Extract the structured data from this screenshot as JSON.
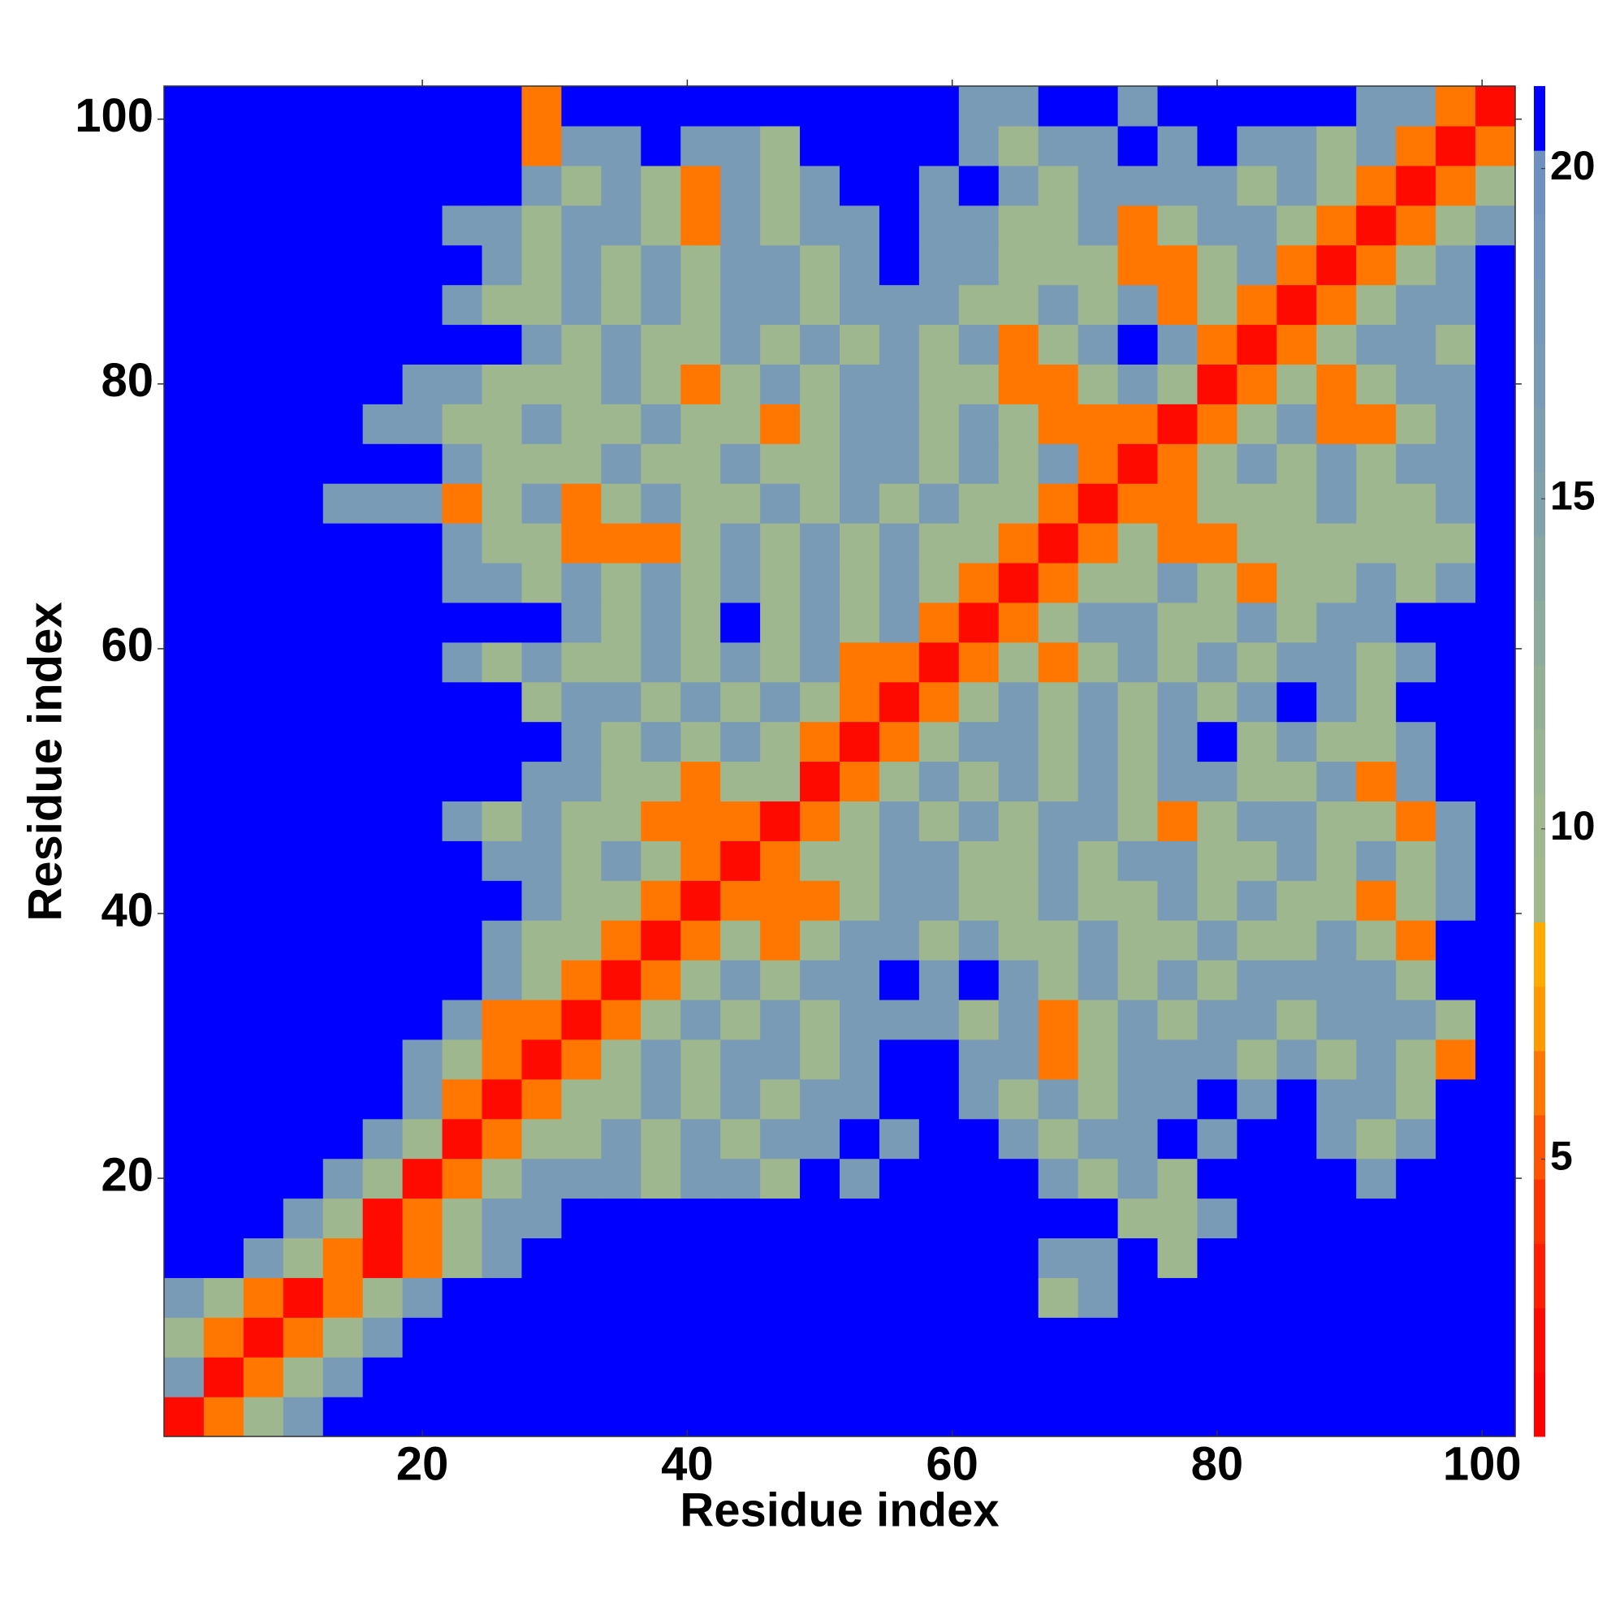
{
  "chart_data": {
    "type": "heatmap",
    "xlabel": "Residue index",
    "ylabel": "Residue index",
    "x": [
      2,
      5,
      8,
      11,
      14,
      17,
      20,
      23,
      26,
      29,
      32,
      35,
      38,
      41,
      44,
      47,
      50,
      53,
      56,
      59,
      62,
      65,
      68,
      71,
      74,
      77,
      80,
      83,
      86,
      89,
      92,
      95,
      98,
      101
    ],
    "y": [
      2,
      5,
      8,
      11,
      14,
      17,
      20,
      23,
      26,
      29,
      32,
      35,
      38,
      41,
      44,
      47,
      50,
      53,
      56,
      59,
      62,
      65,
      68,
      71,
      74,
      77,
      80,
      83,
      86,
      89,
      92,
      95,
      98,
      101
    ],
    "z": [
      [
        2,
        6,
        10,
        17,
        21,
        21,
        21,
        21,
        21,
        21,
        21,
        21,
        21,
        21,
        21,
        21,
        21,
        21,
        21,
        21,
        21,
        21,
        21,
        21,
        21,
        21,
        21,
        21,
        21,
        21,
        21,
        21,
        21,
        21
      ],
      [
        17,
        2,
        6,
        10,
        17,
        21,
        21,
        21,
        21,
        21,
        21,
        21,
        21,
        21,
        21,
        21,
        21,
        21,
        21,
        21,
        21,
        21,
        21,
        21,
        21,
        21,
        21,
        21,
        21,
        21,
        21,
        21,
        21,
        21
      ],
      [
        10,
        6,
        2,
        6,
        10,
        17,
        21,
        21,
        21,
        21,
        21,
        21,
        21,
        21,
        21,
        21,
        21,
        21,
        21,
        21,
        21,
        21,
        21,
        21,
        21,
        21,
        21,
        21,
        21,
        21,
        21,
        21,
        21,
        21
      ],
      [
        17,
        10,
        6,
        2,
        6,
        10,
        17,
        21,
        21,
        21,
        21,
        21,
        21,
        21,
        21,
        21,
        21,
        21,
        21,
        21,
        21,
        21,
        10,
        17,
        21,
        21,
        21,
        21,
        21,
        21,
        21,
        21,
        21,
        21
      ],
      [
        21,
        21,
        17,
        10,
        6,
        2,
        6,
        10,
        17,
        21,
        21,
        21,
        21,
        21,
        21,
        21,
        21,
        21,
        21,
        21,
        21,
        21,
        17,
        17,
        21,
        10,
        21,
        21,
        21,
        21,
        21,
        21,
        21,
        21
      ],
      [
        21,
        21,
        21,
        17,
        10,
        2,
        6,
        10,
        17,
        17,
        21,
        21,
        21,
        21,
        21,
        21,
        21,
        21,
        21,
        21,
        21,
        21,
        21,
        21,
        10,
        10,
        17,
        21,
        21,
        21,
        21,
        21,
        21,
        21
      ],
      [
        21,
        21,
        21,
        21,
        17,
        10,
        2,
        6,
        10,
        17,
        17,
        17,
        10,
        17,
        17,
        10,
        21,
        17,
        21,
        21,
        21,
        21,
        17,
        10,
        17,
        10,
        21,
        21,
        21,
        21,
        17,
        21,
        21,
        21
      ],
      [
        21,
        21,
        21,
        21,
        21,
        17,
        10,
        2,
        6,
        10,
        10,
        17,
        10,
        17,
        10,
        17,
        17,
        21,
        17,
        21,
        21,
        17,
        10,
        17,
        17,
        21,
        17,
        21,
        21,
        17,
        10,
        17,
        21,
        21
      ],
      [
        21,
        21,
        21,
        21,
        21,
        21,
        17,
        6,
        2,
        6,
        10,
        10,
        17,
        10,
        17,
        10,
        17,
        17,
        21,
        21,
        17,
        10,
        17,
        10,
        17,
        17,
        21,
        17,
        21,
        17,
        17,
        10,
        21,
        21
      ],
      [
        21,
        21,
        21,
        21,
        21,
        21,
        17,
        10,
        6,
        2,
        6,
        10,
        17,
        10,
        17,
        17,
        10,
        17,
        21,
        21,
        17,
        17,
        6,
        10,
        17,
        17,
        17,
        10,
        17,
        10,
        17,
        10,
        6,
        21
      ],
      [
        21,
        21,
        21,
        21,
        21,
        21,
        21,
        17,
        6,
        6,
        2,
        6,
        10,
        17,
        10,
        17,
        10,
        17,
        17,
        17,
        10,
        17,
        6,
        10,
        17,
        10,
        17,
        17,
        10,
        17,
        17,
        17,
        10,
        21
      ],
      [
        21,
        21,
        21,
        21,
        21,
        21,
        21,
        21,
        17,
        10,
        6,
        2,
        6,
        10,
        17,
        10,
        17,
        17,
        21,
        17,
        21,
        17,
        10,
        17,
        10,
        17,
        10,
        17,
        17,
        17,
        17,
        10,
        21,
        21
      ],
      [
        21,
        21,
        21,
        21,
        21,
        21,
        21,
        21,
        17,
        10,
        10,
        6,
        2,
        6,
        10,
        6,
        10,
        17,
        17,
        10,
        17,
        10,
        10,
        17,
        10,
        10,
        17,
        10,
        10,
        17,
        10,
        6,
        21,
        21
      ],
      [
        21,
        21,
        21,
        21,
        21,
        21,
        21,
        21,
        21,
        17,
        10,
        10,
        6,
        2,
        6,
        6,
        6,
        10,
        17,
        17,
        10,
        10,
        17,
        10,
        10,
        17,
        10,
        17,
        10,
        10,
        6,
        10,
        17,
        21
      ],
      [
        21,
        21,
        21,
        21,
        21,
        21,
        21,
        21,
        17,
        17,
        10,
        17,
        10,
        6,
        2,
        6,
        10,
        10,
        17,
        17,
        10,
        10,
        17,
        10,
        17,
        17,
        10,
        10,
        17,
        10,
        17,
        10,
        17,
        21
      ],
      [
        21,
        21,
        21,
        21,
        21,
        21,
        21,
        17,
        10,
        17,
        10,
        10,
        6,
        6,
        6,
        2,
        6,
        10,
        17,
        10,
        17,
        10,
        17,
        17,
        10,
        6,
        10,
        17,
        17,
        10,
        10,
        6,
        17,
        21
      ],
      [
        21,
        21,
        21,
        21,
        21,
        21,
        21,
        21,
        21,
        17,
        17,
        10,
        10,
        6,
        10,
        10,
        2,
        6,
        10,
        17,
        10,
        17,
        10,
        17,
        10,
        17,
        17,
        10,
        10,
        17,
        6,
        17,
        21,
        21
      ],
      [
        21,
        21,
        21,
        21,
        21,
        21,
        21,
        21,
        21,
        21,
        17,
        10,
        17,
        10,
        17,
        10,
        6,
        2,
        6,
        10,
        17,
        17,
        10,
        17,
        10,
        17,
        21,
        10,
        17,
        10,
        10,
        17,
        21,
        21
      ],
      [
        21,
        21,
        21,
        21,
        21,
        21,
        21,
        21,
        21,
        10,
        17,
        17,
        10,
        17,
        10,
        17,
        10,
        6,
        2,
        6,
        10,
        17,
        10,
        17,
        10,
        17,
        10,
        17,
        21,
        17,
        10,
        21,
        21,
        21
      ],
      [
        21,
        21,
        21,
        21,
        21,
        21,
        21,
        17,
        10,
        17,
        10,
        10,
        17,
        10,
        17,
        10,
        17,
        6,
        6,
        2,
        6,
        10,
        6,
        10,
        17,
        10,
        17,
        10,
        17,
        17,
        10,
        17,
        21,
        21
      ],
      [
        21,
        21,
        21,
        21,
        21,
        21,
        21,
        21,
        21,
        21,
        17,
        10,
        17,
        10,
        21,
        10,
        17,
        10,
        17,
        6,
        2,
        6,
        10,
        17,
        17,
        10,
        10,
        17,
        10,
        17,
        17,
        21,
        21,
        21
      ],
      [
        21,
        21,
        21,
        21,
        21,
        21,
        21,
        17,
        17,
        10,
        17,
        10,
        17,
        10,
        17,
        10,
        17,
        10,
        17,
        10,
        6,
        2,
        6,
        10,
        10,
        17,
        10,
        6,
        10,
        10,
        17,
        10,
        17,
        21
      ],
      [
        21,
        21,
        21,
        21,
        21,
        21,
        21,
        17,
        10,
        10,
        6,
        6,
        6,
        10,
        17,
        10,
        17,
        10,
        17,
        10,
        10,
        6,
        2,
        6,
        10,
        6,
        6,
        10,
        10,
        10,
        10,
        10,
        10,
        21
      ],
      [
        21,
        21,
        21,
        21,
        17,
        17,
        17,
        6,
        10,
        17,
        6,
        10,
        17,
        10,
        10,
        17,
        10,
        17,
        10,
        17,
        10,
        10,
        6,
        2,
        6,
        6,
        10,
        10,
        10,
        17,
        10,
        10,
        17,
        21
      ],
      [
        21,
        21,
        21,
        21,
        21,
        21,
        21,
        17,
        10,
        10,
        10,
        17,
        10,
        10,
        17,
        10,
        10,
        17,
        17,
        10,
        17,
        10,
        17,
        6,
        2,
        6,
        10,
        17,
        10,
        17,
        10,
        17,
        17,
        21
      ],
      [
        21,
        21,
        21,
        21,
        21,
        17,
        17,
        10,
        10,
        17,
        10,
        10,
        17,
        10,
        10,
        6,
        10,
        17,
        17,
        10,
        17,
        10,
        6,
        6,
        6,
        2,
        6,
        10,
        17,
        6,
        6,
        10,
        17,
        21
      ],
      [
        21,
        21,
        21,
        21,
        21,
        21,
        17,
        17,
        10,
        10,
        10,
        17,
        10,
        6,
        10,
        17,
        10,
        17,
        17,
        10,
        10,
        6,
        6,
        10,
        17,
        10,
        2,
        6,
        10,
        6,
        10,
        17,
        17,
        21
      ],
      [
        21,
        21,
        21,
        21,
        21,
        21,
        21,
        21,
        21,
        17,
        10,
        17,
        10,
        10,
        17,
        10,
        17,
        10,
        17,
        10,
        17,
        6,
        10,
        17,
        21,
        17,
        6,
        2,
        6,
        10,
        17,
        17,
        10,
        21
      ],
      [
        21,
        21,
        21,
        21,
        21,
        21,
        21,
        17,
        10,
        10,
        17,
        10,
        17,
        10,
        17,
        17,
        10,
        17,
        17,
        17,
        10,
        10,
        17,
        10,
        17,
        6,
        10,
        6,
        2,
        6,
        10,
        17,
        17,
        21
      ],
      [
        21,
        21,
        21,
        21,
        21,
        21,
        21,
        21,
        17,
        10,
        17,
        10,
        17,
        10,
        17,
        17,
        10,
        17,
        21,
        17,
        17,
        10,
        10,
        10,
        6,
        6,
        10,
        17,
        6,
        2,
        6,
        10,
        17,
        21
      ],
      [
        21,
        21,
        21,
        21,
        21,
        21,
        21,
        17,
        17,
        10,
        17,
        17,
        10,
        6,
        17,
        10,
        17,
        17,
        21,
        17,
        17,
        10,
        10,
        17,
        6,
        10,
        17,
        17,
        10,
        6,
        2,
        6,
        10,
        17
      ],
      [
        21,
        21,
        21,
        21,
        21,
        21,
        21,
        21,
        21,
        17,
        10,
        17,
        10,
        6,
        17,
        10,
        17,
        21,
        21,
        17,
        21,
        17,
        10,
        17,
        17,
        17,
        17,
        10,
        17,
        10,
        6,
        2,
        6,
        10
      ],
      [
        21,
        21,
        21,
        21,
        21,
        21,
        21,
        21,
        21,
        6,
        17,
        17,
        21,
        17,
        17,
        10,
        21,
        21,
        21,
        21,
        17,
        10,
        17,
        17,
        21,
        17,
        21,
        17,
        17,
        10,
        17,
        6,
        2,
        6
      ],
      [
        21,
        21,
        21,
        21,
        21,
        21,
        21,
        21,
        21,
        6,
        21,
        21,
        21,
        21,
        21,
        21,
        21,
        21,
        21,
        21,
        17,
        17,
        21,
        21,
        17,
        21,
        21,
        21,
        21,
        21,
        17,
        17,
        6,
        2
      ]
    ],
    "xlim": [
      0.5,
      102.5
    ],
    "ylim": [
      0.5,
      102.5
    ],
    "xticks": [
      20,
      40,
      60,
      80,
      100
    ],
    "yticks": [
      20,
      40,
      60,
      80,
      100
    ],
    "clim": [
      0.8,
      21.25
    ],
    "cticks": [
      5,
      10,
      15,
      20
    ],
    "colormap": [
      "#ff0000",
      "#ff0a00",
      "#ff1e00",
      "#ff3300",
      "#ff5500",
      "#ff7700",
      "#ff9900",
      "#ffaa00",
      "#a2b88d",
      "#9fb78e",
      "#9ab592",
      "#94b197",
      "#8eac9d",
      "#88a7a3",
      "#82a2aa",
      "#7e9eb0",
      "#7a9bb5",
      "#7698ba",
      "#7294be",
      "#6e91c2",
      "#0000ff"
    ]
  }
}
